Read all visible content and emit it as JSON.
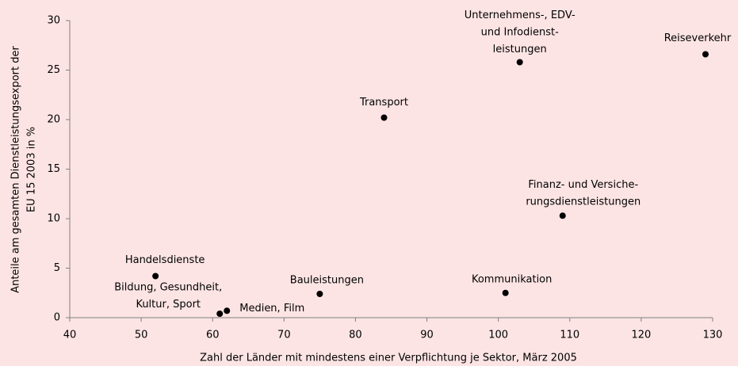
{
  "chart_data": {
    "type": "scatter",
    "x_label": "Zahl der Länder mit mindestens einer Verpflichtung je Sektor, März 2005",
    "y_label": [
      "Anteile am gesamten Dienstleistungsexport der",
      "EU 15 2003  in %"
    ],
    "labels": [
      [
        "Unternehmens-, EDV-",
        "und Infodienst-",
        "leistungen"
      ],
      [
        "Reiseverkehr"
      ],
      [
        "Transport"
      ],
      [
        "Finanz- und Versiche-",
        "rungsdienstleistungen"
      ],
      [
        "Handelsdienste"
      ],
      [
        "Bauleistungen"
      ],
      [
        "Kommunikation"
      ],
      [
        "Bildung, Gesundheit,",
        "Kultur, Sport"
      ],
      [
        "Medien, Film"
      ]
    ],
    "x": [
      103,
      129,
      84,
      109,
      52,
      75,
      101,
      61,
      62
    ],
    "values": [
      25.8,
      26.6,
      20.2,
      10.3,
      4.2,
      2.4,
      2.5,
      0.4,
      0.7
    ],
    "color": "#000000",
    "xlim": [
      40,
      130
    ],
    "xticks": [
      40,
      50,
      60,
      70,
      80,
      90,
      100,
      110,
      120,
      130
    ],
    "ylim": [
      0,
      30
    ],
    "yticks": [
      0,
      5,
      10,
      15,
      20,
      25,
      30
    ]
  }
}
